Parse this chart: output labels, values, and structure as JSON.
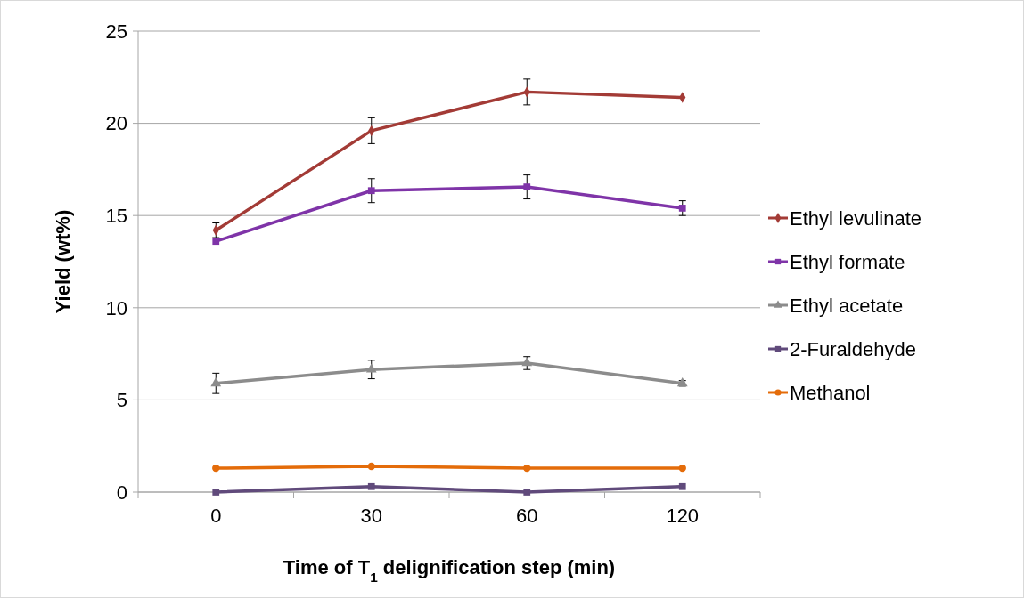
{
  "chart_data": {
    "type": "line",
    "xlabel": "Time of T$_{1}$ delignification step (min)",
    "ylabel": "Yield (wt%)",
    "categories": [
      "0",
      "30",
      "60",
      "120"
    ],
    "ylim": [
      0,
      25
    ],
    "yticks": [
      0,
      5,
      10,
      15,
      20,
      25
    ],
    "grid": "y",
    "legend": "right",
    "series": [
      {
        "name": "Ethyl levulinate",
        "color": "#a33b36",
        "marker": "diamond",
        "values": [
          14.2,
          19.6,
          21.7,
          21.4
        ],
        "errors": [
          0.4,
          0.7,
          0.7,
          null
        ]
      },
      {
        "name": "Ethyl formate",
        "color": "#7f34a8",
        "marker": "square",
        "values": [
          13.6,
          16.35,
          16.55,
          15.4
        ],
        "errors": [
          null,
          0.65,
          0.65,
          0.4
        ]
      },
      {
        "name": "Ethyl acetate",
        "color": "#8c8c8c",
        "marker": "triangle",
        "values": [
          5.9,
          6.65,
          7.0,
          5.9
        ],
        "errors": [
          0.55,
          0.5,
          0.35,
          0.15
        ]
      },
      {
        "name": "2-Furaldehyde",
        "color": "#604a7b",
        "marker": "square",
        "values": [
          0,
          0.3,
          0,
          0.3
        ]
      },
      {
        "name": "Methanol",
        "color": "#e46c0a",
        "marker": "circle",
        "values": [
          1.3,
          1.4,
          1.3,
          1.3
        ]
      }
    ]
  }
}
